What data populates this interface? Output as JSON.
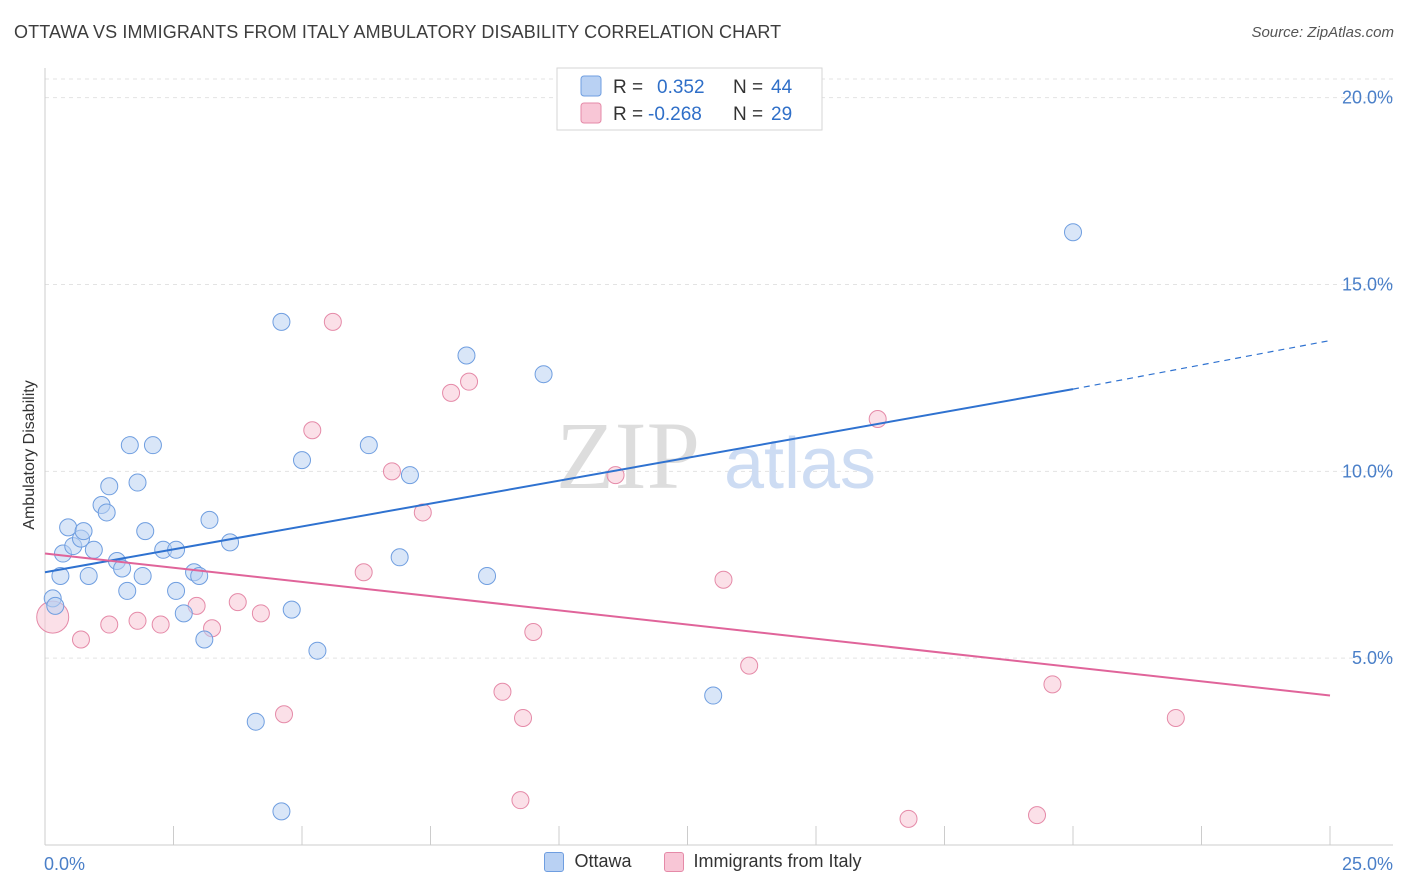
{
  "title": "OTTAWA VS IMMIGRANTS FROM ITALY AMBULATORY DISABILITY CORRELATION CHART",
  "source": "Source: ZipAtlas.com",
  "watermark": {
    "zip": "ZIP",
    "atlas": "atlas"
  },
  "legend_top": [
    {
      "r_label": "R =",
      "r_value": "0.352",
      "n_label": "N =",
      "n_value": "44"
    },
    {
      "r_label": "R =",
      "r_value": "-0.268",
      "n_label": "N =",
      "n_value": "29"
    }
  ],
  "legend_bottom": [
    {
      "label": "Ottawa"
    },
    {
      "label": "Immigrants from Italy"
    }
  ],
  "colors": {
    "blue_fill": "#b9d1f3",
    "blue_stroke": "#6f9ee0",
    "blue_line": "#2f72d0",
    "pink_fill": "#f8c6d6",
    "pink_stroke": "#e58aa8",
    "pink_line": "#e0649a",
    "tick_text": "#4a7fc8"
  },
  "chart_data": {
    "type": "scatter",
    "title": "OTTAWA VS IMMIGRANTS FROM ITALY AMBULATORY DISABILITY CORRELATION CHART",
    "xlabel": "",
    "ylabel": "Ambulatory Disability",
    "xlim": [
      0,
      25
    ],
    "ylim": [
      0,
      20.5
    ],
    "x_tick_labels": [
      "0.0%",
      "25.0%"
    ],
    "y_ticks": [
      5,
      10,
      15,
      20
    ],
    "y_tick_labels": [
      "5.0%",
      "10.0%",
      "15.0%",
      "20.0%"
    ],
    "grid": true,
    "legend_position": "top-center",
    "series": [
      {
        "name": "Ottawa",
        "color": "#6f9ee0",
        "points": [
          [
            0.15,
            6.6
          ],
          [
            0.2,
            6.4
          ],
          [
            0.3,
            7.2
          ],
          [
            0.35,
            7.8
          ],
          [
            0.45,
            8.5
          ],
          [
            0.55,
            8.0
          ],
          [
            0.7,
            8.2
          ],
          [
            0.75,
            8.4
          ],
          [
            0.85,
            7.2
          ],
          [
            0.95,
            7.9
          ],
          [
            1.1,
            9.1
          ],
          [
            1.2,
            8.9
          ],
          [
            1.25,
            9.6
          ],
          [
            1.4,
            7.6
          ],
          [
            1.5,
            7.4
          ],
          [
            1.6,
            6.8
          ],
          [
            1.65,
            10.7
          ],
          [
            1.8,
            9.7
          ],
          [
            1.9,
            7.2
          ],
          [
            1.95,
            8.4
          ],
          [
            2.1,
            10.7
          ],
          [
            2.3,
            7.9
          ],
          [
            2.55,
            7.9
          ],
          [
            2.55,
            6.8
          ],
          [
            2.7,
            6.2
          ],
          [
            2.9,
            7.3
          ],
          [
            3.0,
            7.2
          ],
          [
            3.1,
            5.5
          ],
          [
            3.2,
            8.7
          ],
          [
            3.6,
            8.1
          ],
          [
            4.1,
            3.3
          ],
          [
            4.6,
            0.9
          ],
          [
            4.6,
            14.0
          ],
          [
            4.8,
            6.3
          ],
          [
            5.0,
            10.3
          ],
          [
            5.3,
            5.2
          ],
          [
            6.3,
            10.7
          ],
          [
            6.9,
            7.7
          ],
          [
            7.1,
            9.9
          ],
          [
            8.2,
            13.1
          ],
          [
            8.6,
            7.2
          ],
          [
            9.7,
            12.6
          ],
          [
            13.0,
            4.0
          ],
          [
            20.0,
            16.4
          ]
        ],
        "trend": {
          "x": [
            0,
            20.0
          ],
          "y": [
            7.3,
            12.2
          ],
          "dashed_extension": {
            "x": [
              20.0,
              25.0
            ],
            "y": [
              12.2,
              13.5
            ]
          }
        }
      },
      {
        "name": "Immigrants from Italy",
        "color": "#e58aa8",
        "points": [
          [
            0.15,
            6.1
          ],
          [
            0.7,
            5.5
          ],
          [
            1.25,
            5.9
          ],
          [
            1.8,
            6.0
          ],
          [
            2.25,
            5.9
          ],
          [
            2.95,
            6.4
          ],
          [
            3.25,
            5.8
          ],
          [
            3.75,
            6.5
          ],
          [
            4.2,
            6.2
          ],
          [
            4.65,
            3.5
          ],
          [
            5.2,
            11.1
          ],
          [
            5.6,
            14.0
          ],
          [
            6.2,
            7.3
          ],
          [
            6.75,
            10.0
          ],
          [
            7.35,
            8.9
          ],
          [
            7.9,
            12.1
          ],
          [
            8.25,
            12.4
          ],
          [
            8.9,
            4.1
          ],
          [
            9.25,
            1.2
          ],
          [
            9.3,
            3.4
          ],
          [
            9.5,
            5.7
          ],
          [
            11.1,
            9.9
          ],
          [
            13.2,
            7.1
          ],
          [
            13.7,
            4.8
          ],
          [
            16.2,
            11.4
          ],
          [
            16.8,
            0.7
          ],
          [
            19.3,
            0.8
          ],
          [
            19.6,
            4.3
          ],
          [
            22.0,
            3.4
          ]
        ],
        "trend": {
          "x": [
            0,
            25.0
          ],
          "y": [
            7.8,
            4.0
          ]
        }
      }
    ]
  }
}
